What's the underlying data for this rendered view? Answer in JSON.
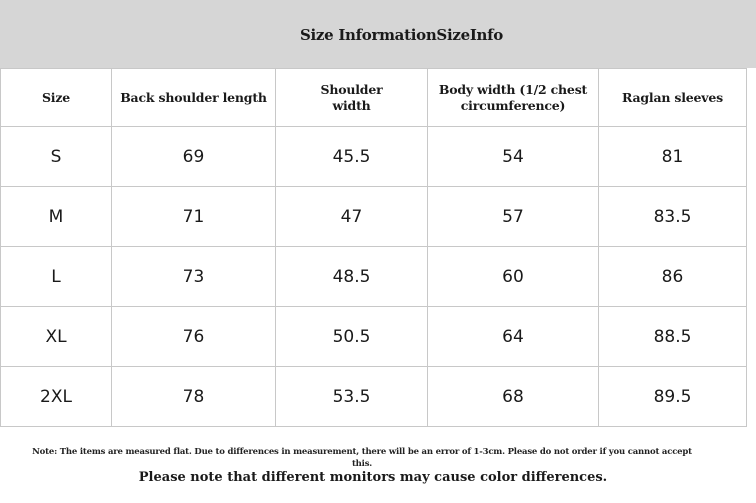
{
  "title": "Size InformationSizeInfo",
  "table": {
    "headers": [
      "Size",
      "Back shoulder length",
      "Shoulder width",
      "Body width (1/2 chest circumference)",
      "Raglan sleeves"
    ],
    "rows": [
      [
        "S",
        "69",
        "45.5",
        "54",
        "81"
      ],
      [
        "M",
        "71",
        "47",
        "57",
        "83.5"
      ],
      [
        "L",
        "73",
        "48.5",
        "60",
        "86"
      ],
      [
        "XL",
        "76",
        "50.5",
        "64",
        "88.5"
      ],
      [
        "2XL",
        "78",
        "53.5",
        "68",
        "89.5"
      ]
    ]
  },
  "note": "Note: The items are measured flat. Due to differences in measurement, there will be an error of 1-3cm. Please do not order if you cannot accept this.",
  "footer_note": "Please note that different monitors may cause color differences.",
  "colors": {
    "title_bar_background": "#d6d6d6",
    "grid_lines": "#c8c8c8"
  }
}
